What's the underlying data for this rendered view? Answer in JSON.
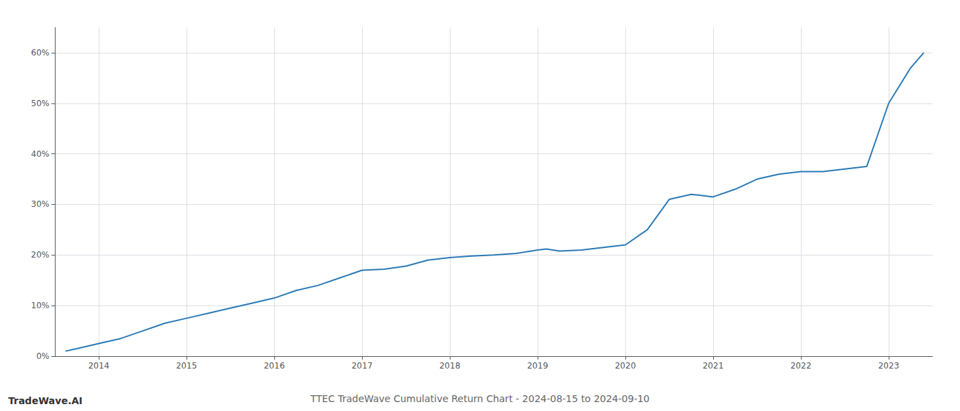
{
  "chart_data": {
    "type": "line",
    "title": "TTEC TradeWave Cumulative Return Chart - 2024-08-15 to 2024-09-10",
    "annotations": [
      "TradeWave.AI"
    ],
    "color": "#2878b5",
    "grid": true,
    "x": [
      2013.62,
      2013.75,
      2014.0,
      2014.25,
      2014.5,
      2014.75,
      2015.0,
      2015.25,
      2015.5,
      2015.75,
      2016.0,
      2016.25,
      2016.5,
      2016.75,
      2017.0,
      2017.25,
      2017.5,
      2017.75,
      2018.0,
      2018.25,
      2018.5,
      2018.75,
      2019.0,
      2019.1,
      2019.25,
      2019.5,
      2019.75,
      2020.0,
      2020.25,
      2020.5,
      2020.75,
      2021.0,
      2021.25,
      2021.5,
      2021.75,
      2022.0,
      2022.25,
      2022.5,
      2022.75,
      2023.0,
      2023.25,
      2023.4
    ],
    "values": [
      1.0,
      1.5,
      2.5,
      3.5,
      5.0,
      6.5,
      7.5,
      8.5,
      9.5,
      10.5,
      11.5,
      13.0,
      14.0,
      15.5,
      17.0,
      17.2,
      17.8,
      19.0,
      19.5,
      19.8,
      20.0,
      20.3,
      21.0,
      21.2,
      20.8,
      21.0,
      21.5,
      22.0,
      25.0,
      31.0,
      32.0,
      31.5,
      33.0,
      35.0,
      36.0,
      36.5,
      36.5,
      37.0,
      37.5,
      50.0,
      57.0,
      60.0
    ],
    "xlim": [
      2013.5,
      2023.5
    ],
    "xticks": [
      2014,
      2015,
      2016,
      2017,
      2018,
      2019,
      2020,
      2021,
      2022,
      2023
    ],
    "ylim": [
      0,
      65
    ],
    "yticks": [
      {
        "value": 0,
        "label": "0%"
      },
      {
        "value": 10,
        "label": "10%"
      },
      {
        "value": 20,
        "label": "20%"
      },
      {
        "value": 30,
        "label": "30%"
      },
      {
        "value": 40,
        "label": "40%"
      },
      {
        "value": 50,
        "label": "50%"
      },
      {
        "value": 60,
        "label": "60%"
      }
    ]
  }
}
